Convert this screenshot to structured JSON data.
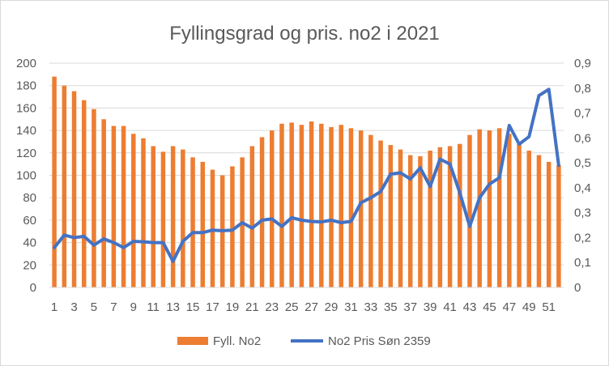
{
  "chart_data": {
    "type": "bar",
    "title": "Fyllingsgrad og pris. no2 i 2021",
    "x": [
      1,
      2,
      3,
      4,
      5,
      6,
      7,
      8,
      9,
      10,
      11,
      12,
      13,
      14,
      15,
      16,
      17,
      18,
      19,
      20,
      21,
      22,
      23,
      24,
      25,
      26,
      27,
      28,
      29,
      30,
      31,
      32,
      33,
      34,
      35,
      36,
      37,
      38,
      39,
      40,
      41,
      42,
      43,
      44,
      45,
      46,
      47,
      48,
      49,
      50,
      51,
      52
    ],
    "x_tick_labels": [
      "1",
      "3",
      "5",
      "7",
      "9",
      "11",
      "13",
      "15",
      "17",
      "19",
      "21",
      "23",
      "25",
      "27",
      "29",
      "31",
      "33",
      "35",
      "37",
      "39",
      "41",
      "43",
      "45",
      "47",
      "49",
      "51"
    ],
    "y_left": {
      "min": 0,
      "max": 200,
      "step": 20,
      "tick_labels": [
        "0",
        "20",
        "40",
        "60",
        "80",
        "100",
        "120",
        "140",
        "160",
        "180",
        "200"
      ]
    },
    "y_right": {
      "min": 0,
      "max": 0.9,
      "step": 0.1,
      "tick_labels": [
        "0",
        "0,1",
        "0,2",
        "0,3",
        "0,4",
        "0,5",
        "0,6",
        "0,7",
        "0,8",
        "0,9"
      ]
    },
    "grid": true,
    "legend_position": "bottom",
    "series": [
      {
        "name": "Fyll. No2",
        "type": "bar",
        "axis": "left",
        "color": "#ed7d31",
        "values": [
          188,
          180,
          175,
          167,
          159,
          150,
          144,
          144,
          137,
          133,
          126,
          121,
          126,
          123,
          116,
          112,
          105,
          100,
          108,
          116,
          126,
          134,
          140,
          146,
          147,
          145,
          148,
          146,
          143,
          145,
          142,
          140,
          136,
          131,
          127,
          123,
          118,
          117,
          122,
          125,
          126,
          128,
          136,
          141,
          140,
          142,
          137,
          128,
          122,
          118,
          112,
          109
        ]
      },
      {
        "name": "No2 Pris Søn 2359",
        "type": "line",
        "axis": "right",
        "color": "#4472c4",
        "values": [
          0.16,
          0.21,
          0.2,
          0.205,
          0.17,
          0.195,
          0.18,
          0.16,
          0.185,
          0.183,
          0.18,
          0.18,
          0.105,
          0.185,
          0.22,
          0.22,
          0.23,
          0.228,
          0.23,
          0.26,
          0.238,
          0.27,
          0.275,
          0.245,
          0.28,
          0.27,
          0.265,
          0.263,
          0.27,
          0.26,
          0.265,
          0.34,
          0.36,
          0.385,
          0.455,
          0.46,
          0.435,
          0.48,
          0.405,
          0.515,
          0.495,
          0.38,
          0.245,
          0.36,
          0.415,
          0.44,
          0.65,
          0.575,
          0.605,
          0.77,
          0.795,
          0.49
        ]
      }
    ]
  }
}
